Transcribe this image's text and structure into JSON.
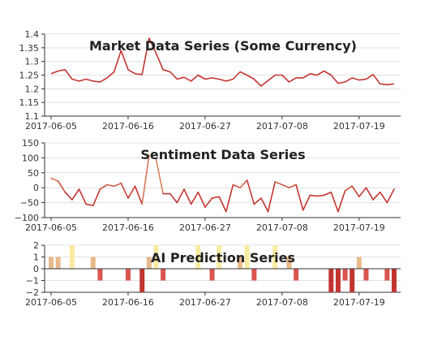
{
  "colors": {
    "market_line": "#c23531",
    "sentiment_low": "#c23531",
    "sentiment_high": "#f5e39a",
    "grid": "#e0e0e0",
    "axis": "#333333",
    "pred_neg2": "#c23531",
    "pred_neg1": "#d9554f",
    "pred_pos1": "#e8b98a",
    "pred_pos2": "#f7eba0"
  },
  "chart_data": [
    {
      "type": "line",
      "title": "Market Data Series (Some Currency)",
      "x_dates": [
        "2017-06-05",
        "2017-06-06",
        "2017-06-07",
        "2017-06-08",
        "2017-06-09",
        "2017-06-10",
        "2017-06-11",
        "2017-06-12",
        "2017-06-13",
        "2017-06-14",
        "2017-06-15",
        "2017-06-16",
        "2017-06-17",
        "2017-06-18",
        "2017-06-19",
        "2017-06-20",
        "2017-06-21",
        "2017-06-22",
        "2017-06-23",
        "2017-06-24",
        "2017-06-25",
        "2017-06-26",
        "2017-06-27",
        "2017-06-28",
        "2017-06-29",
        "2017-06-30",
        "2017-07-01",
        "2017-07-02",
        "2017-07-03",
        "2017-07-04",
        "2017-07-05",
        "2017-07-06",
        "2017-07-07",
        "2017-07-08",
        "2017-07-09",
        "2017-07-10",
        "2017-07-11",
        "2017-07-12",
        "2017-07-13",
        "2017-07-14",
        "2017-07-15",
        "2017-07-16",
        "2017-07-17",
        "2017-07-18",
        "2017-07-19",
        "2017-07-20",
        "2017-07-21",
        "2017-07-22",
        "2017-07-23",
        "2017-07-24"
      ],
      "values": [
        1.255,
        1.265,
        1.27,
        1.235,
        1.228,
        1.235,
        1.228,
        1.225,
        1.24,
        1.262,
        1.34,
        1.27,
        1.255,
        1.252,
        1.385,
        1.33,
        1.27,
        1.262,
        1.235,
        1.242,
        1.228,
        1.25,
        1.235,
        1.24,
        1.235,
        1.228,
        1.235,
        1.262,
        1.25,
        1.235,
        1.21,
        1.23,
        1.25,
        1.25,
        1.225,
        1.24,
        1.24,
        1.255,
        1.25,
        1.265,
        1.25,
        1.22,
        1.225,
        1.24,
        1.232,
        1.235,
        1.252,
        1.218,
        1.215,
        1.218
      ],
      "xtick_labels": [
        "2017-06-05",
        "2017-06-16",
        "2017-06-27",
        "2017-07-08",
        "2017-07-19"
      ],
      "ytick_labels": [
        "1.1",
        "1.15",
        "1.2",
        "1.25",
        "1.3",
        "1.35",
        "1.4"
      ],
      "ylim": [
        1.1,
        1.4
      ],
      "grid": true
    },
    {
      "type": "line",
      "title": "Sentiment Data Series",
      "values": [
        32,
        22,
        -15,
        -40,
        -5,
        -55,
        -60,
        -5,
        10,
        5,
        15,
        -35,
        5,
        -55,
        110,
        95,
        -20,
        -20,
        -50,
        -5,
        -55,
        -15,
        -65,
        -35,
        -30,
        -80,
        10,
        0,
        25,
        -55,
        -35,
        -80,
        20,
        10,
        0,
        10,
        -75,
        -25,
        -28,
        -25,
        -15,
        -80,
        -10,
        5,
        -30,
        0,
        -40,
        -15,
        -50,
        -5
      ],
      "xtick_labels": [
        "2017-06-05",
        "2017-06-16",
        "2017-06-27",
        "2017-07-08",
        "2017-07-19"
      ],
      "ytick_labels": [
        "−100",
        "−50",
        "0",
        "50",
        "100",
        "150"
      ],
      "ylim": [
        -100,
        150
      ],
      "grid": true
    },
    {
      "type": "bar",
      "title": "AI Prediction Series",
      "values": [
        1,
        1,
        0,
        2,
        0,
        0,
        1,
        -1,
        0,
        0,
        0,
        -1,
        0,
        -2,
        1,
        2,
        -1,
        0,
        0,
        0,
        0,
        2,
        0,
        -1,
        2,
        0,
        0,
        1,
        2,
        -1,
        0,
        0,
        2,
        0,
        1,
        -1,
        0,
        0,
        0,
        0,
        -2,
        -2,
        -1,
        -2,
        1,
        -1,
        0,
        0,
        -1,
        -2
      ],
      "xtick_labels": [
        "2017-06-05",
        "2017-06-16",
        "2017-06-27",
        "2017-07-08",
        "2017-07-19"
      ],
      "ytick_labels": [
        "−2",
        "−1",
        "0",
        "1",
        "2"
      ],
      "ylim": [
        -2,
        2
      ],
      "grid": true
    }
  ]
}
